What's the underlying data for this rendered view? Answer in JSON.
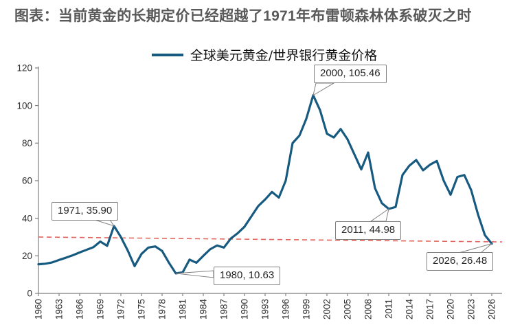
{
  "title": "图表：当前黄金的长期定价已经超越了1971年布雷顿森林体系破灭之时",
  "legend": {
    "label": "全球美元黄金/世界银行黄金价格"
  },
  "colors": {
    "line": "#175a80",
    "trend": "#dd655f",
    "axis": "#7f7f7f",
    "tick_text": "#303030",
    "title_text": "#595959",
    "callout_border": "#7f7f7f"
  },
  "chart_data": {
    "type": "line",
    "title": "图表：当前黄金的长期定价已经超越了1971年布雷顿森林体系破灭之时",
    "legend_entries": [
      "全球美元黄金/世界银行黄金价格"
    ],
    "legend_position": "top",
    "grid": false,
    "ylim": [
      0,
      120
    ],
    "y_ticks": [
      0,
      20,
      40,
      60,
      80,
      100,
      120
    ],
    "x_range": [
      1960,
      2026
    ],
    "x_tick_labels": [
      1960,
      1963,
      1966,
      1969,
      1972,
      1975,
      1978,
      1981,
      1984,
      1987,
      1990,
      1993,
      1996,
      1999,
      2002,
      2005,
      2008,
      2011,
      2014,
      2017,
      2020,
      2023,
      2026
    ],
    "series": [
      {
        "name": "全球美元黄金/世界银行黄金价格",
        "x": [
          1960,
          1961,
          1962,
          1963,
          1964,
          1965,
          1966,
          1967,
          1968,
          1969,
          1970,
          1971,
          1972,
          1973,
          1974,
          1975,
          1976,
          1977,
          1978,
          1979,
          1980,
          1981,
          1982,
          1983,
          1984,
          1985,
          1986,
          1987,
          1988,
          1989,
          1990,
          1991,
          1992,
          1993,
          1994,
          1995,
          1996,
          1997,
          1998,
          1999,
          2000,
          2001,
          2002,
          2003,
          2004,
          2005,
          2006,
          2007,
          2008,
          2009,
          2010,
          2011,
          2012,
          2013,
          2014,
          2015,
          2016,
          2017,
          2018,
          2019,
          2020,
          2021,
          2022,
          2023,
          2024,
          2025,
          2026
        ],
        "values": [
          15.5,
          15.8,
          16.5,
          17.8,
          19.0,
          20.3,
          21.8,
          23.2,
          24.6,
          27.6,
          25.3,
          35.9,
          30.0,
          22.8,
          14.5,
          21.0,
          24.4,
          25.0,
          22.6,
          16.3,
          10.63,
          11.2,
          18.0,
          16.3,
          20.0,
          23.5,
          25.5,
          24.4,
          29.2,
          32.0,
          35.5,
          41.0,
          46.5,
          50.0,
          54.0,
          51.0,
          60.0,
          80.0,
          84.0,
          93.0,
          105.46,
          97.5,
          85.0,
          83.0,
          87.5,
          82.0,
          74.0,
          66.0,
          75.0,
          56.0,
          48.0,
          44.98,
          46.0,
          63.0,
          68.0,
          71.0,
          65.5,
          68.5,
          70.5,
          60.0,
          52.5,
          62.0,
          63.0,
          55.0,
          42.0,
          31.0,
          26.48
        ]
      }
    ],
    "trendline": {
      "style": "dashed",
      "color": "#dd655f",
      "start_value": 30.0,
      "end_value": 27.4
    },
    "annotations": [
      {
        "x": 1971,
        "y": 35.9,
        "label": "1971, 35.90"
      },
      {
        "x": 1980,
        "y": 10.63,
        "label": "1980, 10.63"
      },
      {
        "x": 2000,
        "y": 105.46,
        "label": "2000, 105.46"
      },
      {
        "x": 2011,
        "y": 44.98,
        "label": "2011, 44.98"
      },
      {
        "x": 2026,
        "y": 26.48,
        "label": "2026, 26.48"
      }
    ]
  }
}
